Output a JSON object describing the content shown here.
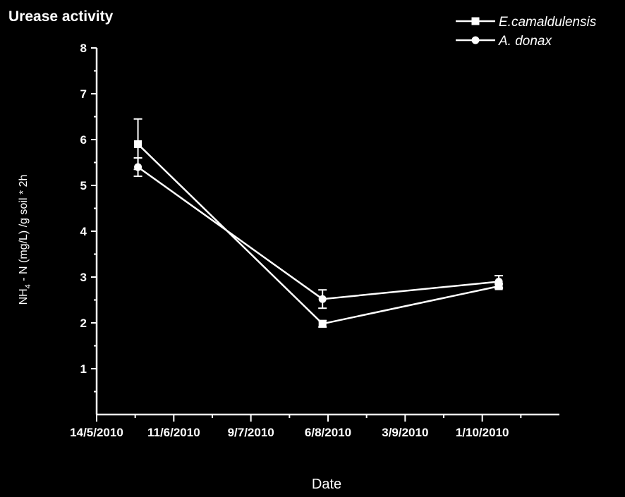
{
  "chart_data": {
    "type": "line",
    "title": "Urease activity",
    "xlabel": "Date",
    "ylabel": {
      "prefix": "NH",
      "subscript": "4",
      "rest": " - N (mg/L) /g soil * 2h"
    },
    "ylim": [
      0,
      8
    ],
    "yticks": [
      "1",
      "2",
      "3",
      "4",
      "5",
      "6",
      "7",
      "8"
    ],
    "xticks": [
      "14/5/2010",
      "11/6/2010",
      "9/7/2010",
      "6/8/2010",
      "3/9/2010",
      "1/10/2010"
    ],
    "xlim": [
      "14/5/2010",
      "29/10/2010"
    ],
    "legend_position": "top-right",
    "series": [
      {
        "name": "E.camaldulensis",
        "marker": "square",
        "x": [
          "29/5/2010",
          "4/8/2010",
          "7/10/2010"
        ],
        "values": [
          5.9,
          1.98,
          2.8
        ],
        "errors": [
          0.55,
          0.07,
          0.05
        ]
      },
      {
        "name": "A. donax",
        "marker": "circle",
        "x": [
          "29/5/2010",
          "4/8/2010",
          "7/10/2010"
        ],
        "values": [
          5.4,
          2.52,
          2.9
        ],
        "errors": [
          0.2,
          0.2,
          0.13
        ]
      }
    ],
    "colors": {
      "background": "#000000",
      "foreground": "#ffffff"
    }
  }
}
